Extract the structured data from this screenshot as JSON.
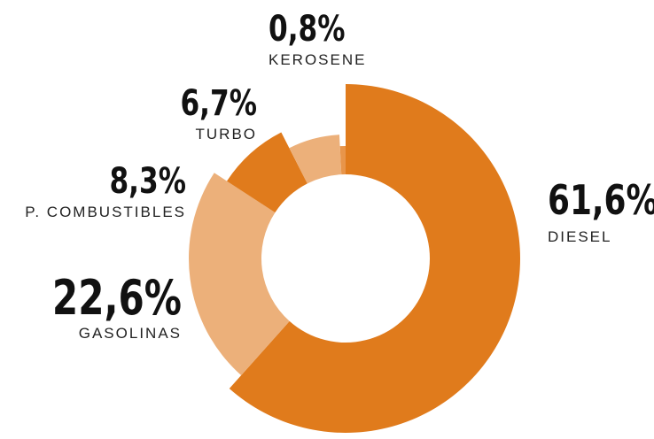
{
  "chart_data": {
    "type": "donut",
    "categories": [
      "DIESEL",
      "GASOLINAS",
      "P. COMBUSTIBLES",
      "TURBO",
      "KEROSENE"
    ],
    "values": [
      61.6,
      22.6,
      8.3,
      6.7,
      0.8
    ],
    "value_labels": [
      "61,6%",
      "22,6%",
      "8,3%",
      "6,7%",
      "0,8%"
    ],
    "colors": [
      "#e07b1c",
      "#ecb07a",
      "#e07b1c",
      "#ecb07a",
      "#e8954a"
    ]
  }
}
